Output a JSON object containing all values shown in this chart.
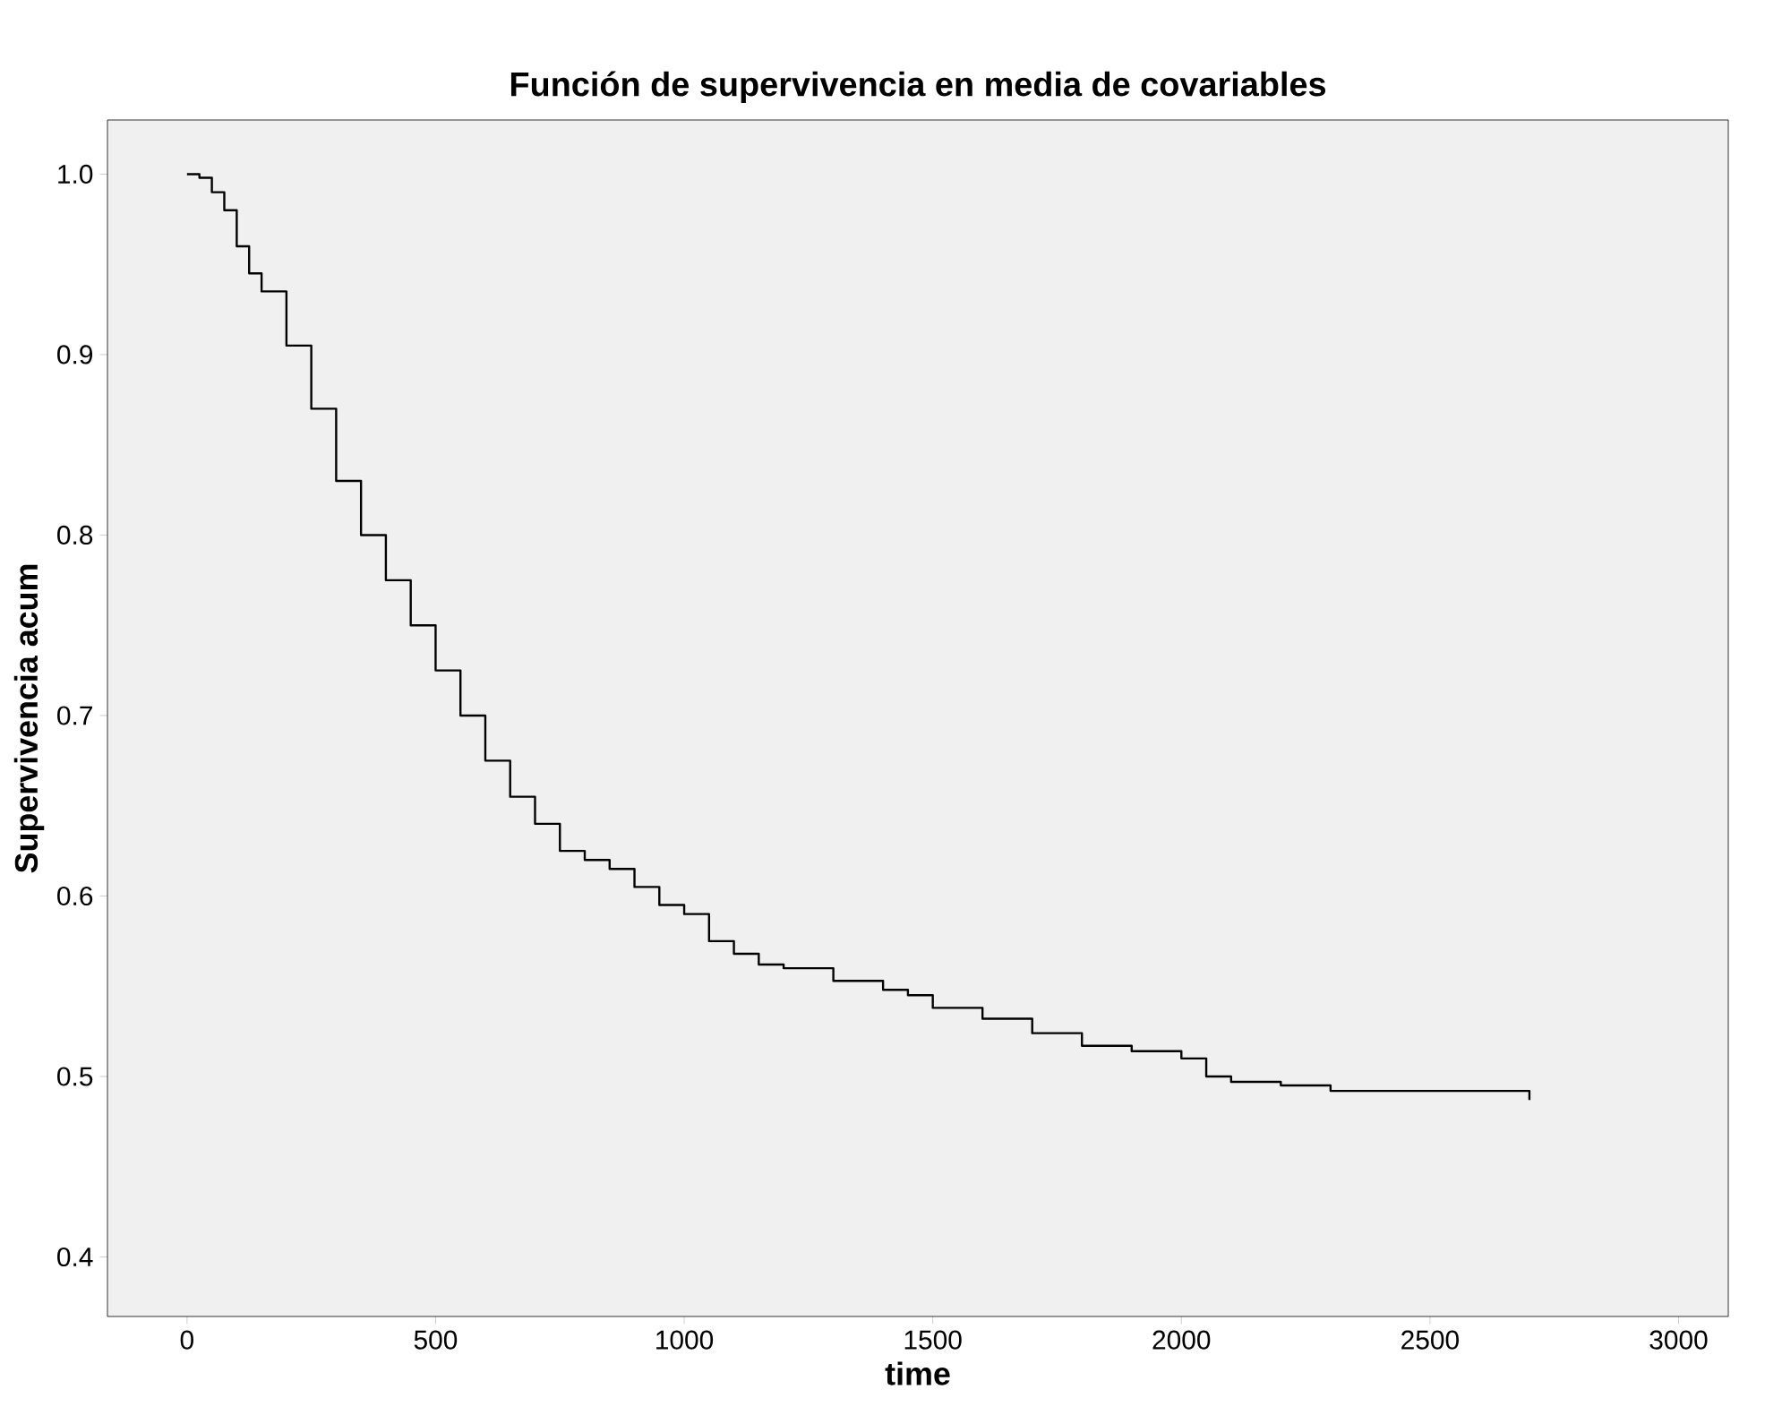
{
  "chart_data": {
    "type": "step",
    "title": "Función de supervivencia en media de covariables",
    "xlabel": "time",
    "ylabel": "Supervivencia acum",
    "x": [
      0,
      25,
      50,
      75,
      100,
      125,
      150,
      200,
      250,
      300,
      350,
      400,
      450,
      500,
      550,
      600,
      650,
      700,
      750,
      800,
      850,
      900,
      950,
      1000,
      1050,
      1100,
      1150,
      1200,
      1300,
      1400,
      1450,
      1500,
      1600,
      1700,
      1800,
      1900,
      2000,
      2050,
      2100,
      2200,
      2300,
      2400,
      2700,
      2700
    ],
    "series": [
      {
        "color": "#000000",
        "values": [
          1.0,
          0.998,
          0.99,
          0.98,
          0.96,
          0.945,
          0.935,
          0.905,
          0.87,
          0.83,
          0.8,
          0.775,
          0.75,
          0.725,
          0.7,
          0.675,
          0.655,
          0.64,
          0.625,
          0.62,
          0.615,
          0.605,
          0.595,
          0.59,
          0.575,
          0.568,
          0.562,
          0.56,
          0.553,
          0.548,
          0.545,
          0.538,
          0.532,
          0.524,
          0.517,
          0.514,
          0.51,
          0.5,
          0.497,
          0.495,
          0.492,
          0.492,
          0.492,
          0.487
        ]
      }
    ],
    "xlim": [
      -160,
      3100
    ],
    "ylim": [
      0.367,
      1.03
    ],
    "xticks": [
      0,
      500,
      1000,
      1500,
      2000,
      2500,
      3000
    ],
    "yticks": [
      {
        "value": 0.4,
        "label": "0.4"
      },
      {
        "value": 0.5,
        "label": "0.5"
      },
      {
        "value": 0.6,
        "label": "0.6"
      },
      {
        "value": 0.7,
        "label": "0.7"
      },
      {
        "value": 0.8,
        "label": "0.8"
      },
      {
        "value": 0.9,
        "label": "0.9"
      },
      {
        "value": 1.0,
        "label": "1.0"
      }
    ],
    "grid": false
  }
}
